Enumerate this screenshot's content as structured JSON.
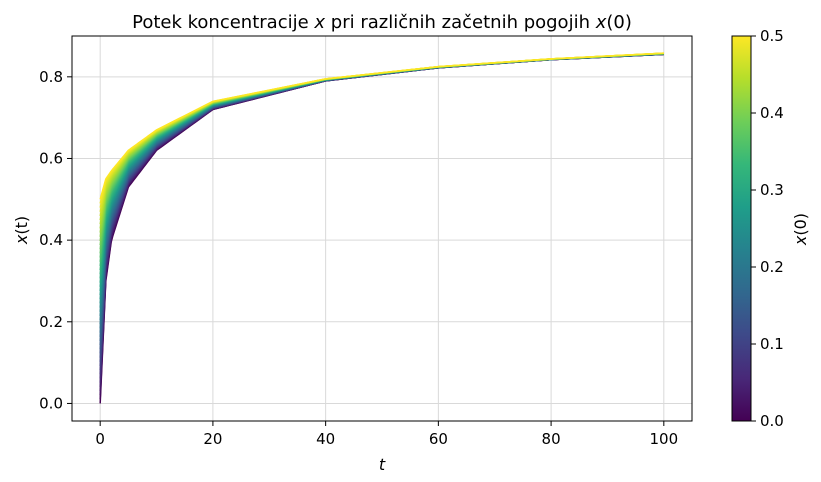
{
  "chart_data": {
    "type": "line",
    "title_prefix": "Potek koncentracije ",
    "title_var": "x",
    "title_middle": " pri različnih začetnih pogojih ",
    "title_func": "x",
    "title_suffix": "(0)",
    "xlabel": "t",
    "ylabel_var": "x",
    "ylabel_arg": "(t)",
    "xlim": [
      -5,
      105
    ],
    "ylim": [
      -0.043,
      0.9
    ],
    "xticks": [
      0,
      20,
      40,
      60,
      80,
      100
    ],
    "xtick_labels": [
      "0",
      "20",
      "40",
      "60",
      "80",
      "100"
    ],
    "yticks": [
      0.0,
      0.2,
      0.4,
      0.6,
      0.8
    ],
    "ytick_labels": [
      "0.0",
      "0.2",
      "0.4",
      "0.6",
      "0.8"
    ],
    "grid": true,
    "colorbar": {
      "label_var": "x",
      "label_suffix": "(0)",
      "colormap": "viridis",
      "range": [
        0.0,
        0.5
      ],
      "ticks": [
        0.0,
        0.1,
        0.2,
        0.3,
        0.4,
        0.5
      ],
      "tick_labels": [
        "0.0",
        "0.1",
        "0.2",
        "0.3",
        "0.4",
        "0.5"
      ],
      "viridis_stops": [
        "#440154",
        "#482878",
        "#3e4989",
        "#31688e",
        "#26828e",
        "#1f9e89",
        "#35b779",
        "#6ece58",
        "#b5de2b",
        "#fde725"
      ]
    },
    "series_description": {
      "x0_min": 0.0,
      "x0_max": 0.5,
      "count": 50,
      "t_range": [
        0,
        100
      ]
    },
    "sample_curve_points": {
      "x0_0.0": [
        [
          0,
          0.0
        ],
        [
          1,
          0.3
        ],
        [
          2,
          0.4
        ],
        [
          5,
          0.53
        ],
        [
          10,
          0.62
        ],
        [
          20,
          0.72
        ],
        [
          40,
          0.79
        ],
        [
          60,
          0.822
        ],
        [
          80,
          0.842
        ],
        [
          100,
          0.855
        ]
      ],
      "x0_0.5": [
        [
          0,
          0.5
        ],
        [
          1,
          0.55
        ],
        [
          2,
          0.57
        ],
        [
          5,
          0.62
        ],
        [
          10,
          0.67
        ],
        [
          20,
          0.74
        ],
        [
          40,
          0.795
        ],
        [
          60,
          0.825
        ],
        [
          80,
          0.844
        ],
        [
          100,
          0.858
        ]
      ]
    }
  }
}
